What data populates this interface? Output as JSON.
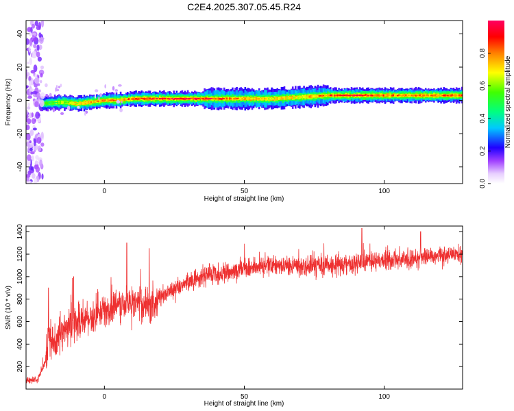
{
  "title": "C2E4.2025.307.05.45.R24",
  "chart_data": [
    {
      "type": "heatmap",
      "xlabel": "Height of straight line (km)",
      "ylabel": "Frequency (Hz)",
      "xlim": [
        -28,
        128
      ],
      "ylim": [
        -50,
        48
      ],
      "xticks": [
        0,
        50,
        100
      ],
      "yticks": [
        -40,
        -20,
        0,
        20,
        40
      ],
      "colorbar": {
        "label": "Normalized spectral amplitude",
        "range": [
          0.0,
          1.0
        ],
        "ticks": [
          "0.0",
          "0.2",
          "0.4",
          "0.6",
          "0.8"
        ],
        "colormap": [
          "#ffffff",
          "#e8d0ff",
          "#a040ff",
          "#2000ff",
          "#00c8ff",
          "#00ff80",
          "#40ff00",
          "#ffff00",
          "#ff8000",
          "#ff0000",
          "#ff0060"
        ]
      },
      "ridge": {
        "x": [
          -23,
          -15,
          -10,
          -5,
          0,
          5,
          10,
          20,
          30,
          40,
          50,
          60,
          70,
          80,
          90,
          95,
          100,
          110,
          120,
          128
        ],
        "freq": [
          -2,
          -1,
          -2,
          -1,
          0,
          0,
          1,
          1,
          1,
          1,
          1,
          1,
          2,
          3,
          3,
          3,
          3,
          3,
          3,
          3
        ],
        "amplitude": [
          0.45,
          0.6,
          0.7,
          0.75,
          0.8,
          0.8,
          0.85,
          0.9,
          0.95,
          0.9,
          0.75,
          0.7,
          0.7,
          0.85,
          0.95,
          0.9,
          0.85,
          0.8,
          0.85,
          0.85
        ]
      },
      "noise_region_x": [
        -28,
        -22
      ]
    },
    {
      "type": "line",
      "xlabel": "Height of straight line (km)",
      "ylabel": "SNR (10 * v/v)",
      "xlim": [
        -28,
        128
      ],
      "ylim": [
        0,
        1450
      ],
      "xticks": [
        0,
        50,
        100
      ],
      "yticks": [
        200,
        400,
        600,
        800,
        1000,
        1200,
        1400
      ],
      "color": "#ee3030",
      "trend": {
        "x": [
          -28,
          -24,
          -21,
          -20,
          -18,
          -15,
          -10,
          -5,
          0,
          5,
          10,
          15,
          18,
          20,
          25,
          30,
          35,
          40,
          50,
          60,
          70,
          80,
          90,
          100,
          110,
          120,
          128
        ],
        "y": [
          80,
          80,
          250,
          480,
          420,
          520,
          600,
          620,
          700,
          740,
          760,
          750,
          730,
          820,
          880,
          950,
          1000,
          1020,
          1080,
          1100,
          1090,
          1100,
          1120,
          1150,
          1160,
          1190,
          1200
        ]
      },
      "spikes": {
        "x": [
          -20,
          -11,
          8,
          16,
          92,
          113
        ],
        "y": [
          900,
          1000,
          1300,
          1250,
          1430,
          1400
        ]
      }
    }
  ]
}
